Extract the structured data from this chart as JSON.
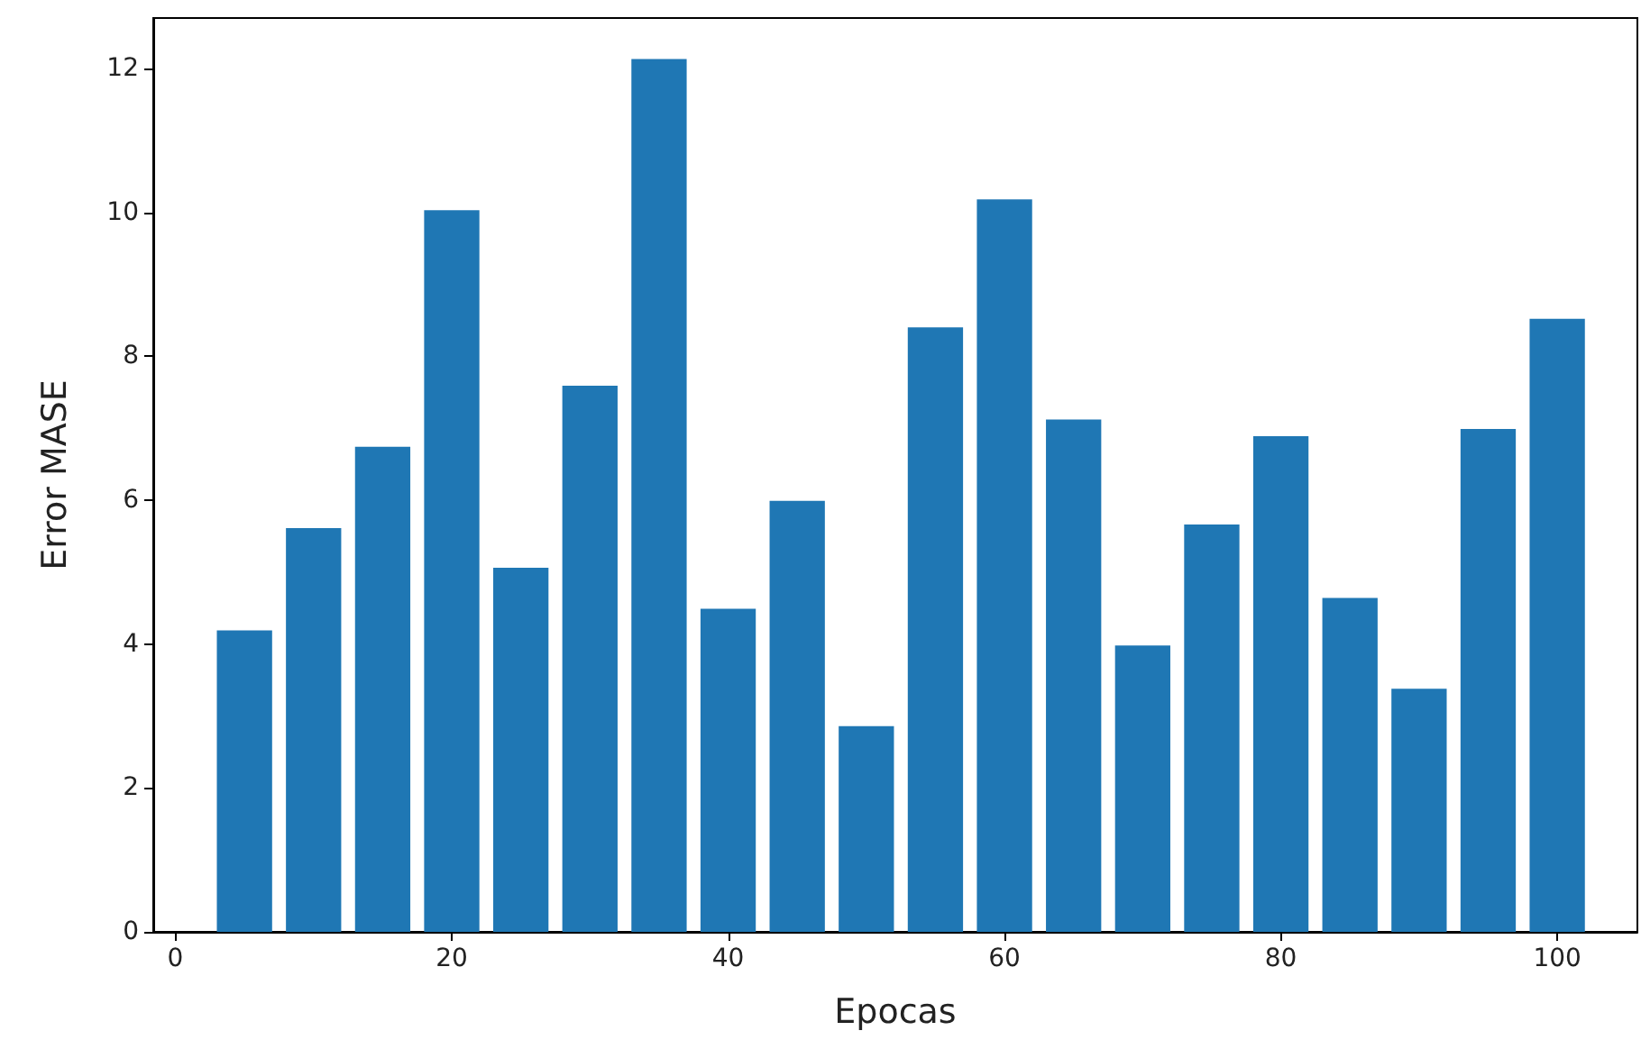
{
  "chart_data": {
    "type": "bar",
    "xlabel": "Epocas",
    "ylabel": "Error MASE",
    "color": "#1f77b4",
    "x": [
      5,
      10,
      15,
      20,
      25,
      30,
      35,
      40,
      45,
      50,
      55,
      60,
      65,
      70,
      75,
      80,
      85,
      90,
      95,
      100
    ],
    "values": [
      4.19,
      5.61,
      6.74,
      10.03,
      5.06,
      7.59,
      12.13,
      4.49,
      5.99,
      2.86,
      8.4,
      10.18,
      7.12,
      3.98,
      5.66,
      6.89,
      4.64,
      3.38,
      6.99,
      8.52
    ],
    "xlim": [
      -1.6,
      105.8
    ],
    "xticks": [
      0,
      20,
      40,
      60,
      80,
      100
    ],
    "ylim": [
      0,
      12.7
    ],
    "yticks": [
      0,
      2,
      4,
      6,
      8,
      10,
      12
    ]
  }
}
